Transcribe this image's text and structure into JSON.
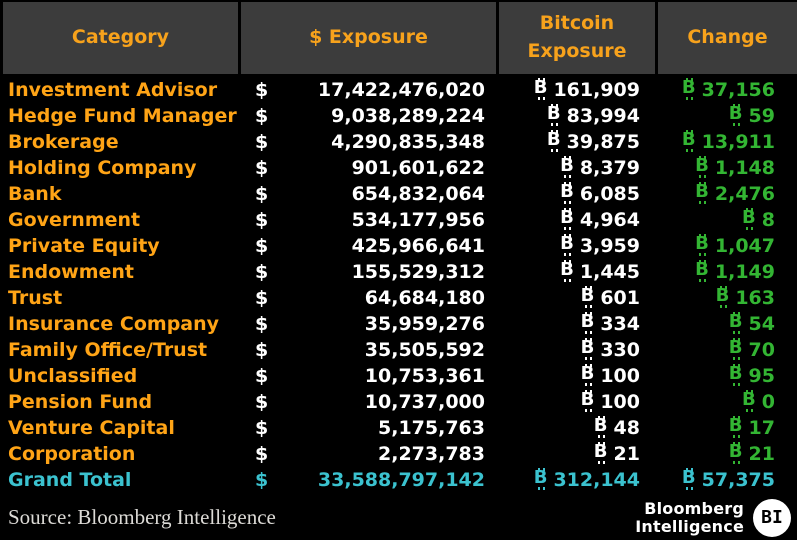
{
  "colors": {
    "background": "#000000",
    "header_bg": "#3c3c3c",
    "header_text": "#f7a21c",
    "category_orange": "#ffa416",
    "value_white": "#ffffff",
    "change_green": "#33b533",
    "total_cyan": "#3bc2cf"
  },
  "table": {
    "headers": [
      "Category",
      "$ Exposure",
      "Bitcoin Exposure",
      "Change"
    ],
    "currency_usd": "$",
    "currency_btc": "₿",
    "rows": [
      {
        "category": "Investment Advisor",
        "usd": "17,422,476,020",
        "btc": "161,909",
        "change": "37,156"
      },
      {
        "category": "Hedge Fund Manager",
        "usd": "9,038,289,224",
        "btc": "83,994",
        "change": "59"
      },
      {
        "category": "Brokerage",
        "usd": "4,290,835,348",
        "btc": "39,875",
        "change": "13,911"
      },
      {
        "category": "Holding Company",
        "usd": "901,601,622",
        "btc": "8,379",
        "change": "1,148"
      },
      {
        "category": "Bank",
        "usd": "654,832,064",
        "btc": "6,085",
        "change": "2,476"
      },
      {
        "category": "Government",
        "usd": "534,177,956",
        "btc": "4,964",
        "change": "8"
      },
      {
        "category": "Private Equity",
        "usd": "425,966,641",
        "btc": "3,959",
        "change": "1,047"
      },
      {
        "category": "Endowment",
        "usd": "155,529,312",
        "btc": "1,445",
        "change": "1,149"
      },
      {
        "category": "Trust",
        "usd": "64,684,180",
        "btc": "601",
        "change": "163"
      },
      {
        "category": "Insurance Company",
        "usd": "35,959,276",
        "btc": "334",
        "change": "54"
      },
      {
        "category": "Family Office/Trust",
        "usd": "35,505,592",
        "btc": "330",
        "change": "70"
      },
      {
        "category": "Unclassified",
        "usd": "10,753,361",
        "btc": "100",
        "change": "95"
      },
      {
        "category": "Pension Fund",
        "usd": "10,737,000",
        "btc": "100",
        "change": "0"
      },
      {
        "category": "Venture Capital",
        "usd": "5,175,763",
        "btc": "48",
        "change": "17"
      },
      {
        "category": "Corporation",
        "usd": "2,273,783",
        "btc": "21",
        "change": "21"
      },
      {
        "category": "Grand Total",
        "usd": "33,588,797,142",
        "btc": "312,144",
        "change": "57,375",
        "total": true
      }
    ]
  },
  "chart_data": {
    "type": "table",
    "columns": [
      "Category",
      "$ Exposure",
      "Bitcoin Exposure",
      "Change"
    ],
    "rows": [
      [
        "Investment Advisor",
        17422476020,
        161909,
        37156
      ],
      [
        "Hedge Fund Manager",
        9038289224,
        83994,
        59
      ],
      [
        "Brokerage",
        4290835348,
        39875,
        13911
      ],
      [
        "Holding Company",
        901601622,
        8379,
        1148
      ],
      [
        "Bank",
        654832064,
        6085,
        2476
      ],
      [
        "Government",
        534177956,
        4964,
        8
      ],
      [
        "Private Equity",
        425966641,
        3959,
        1047
      ],
      [
        "Endowment",
        155529312,
        1445,
        1149
      ],
      [
        "Trust",
        64684180,
        601,
        163
      ],
      [
        "Insurance Company",
        35959276,
        334,
        54
      ],
      [
        "Family Office/Trust",
        35505592,
        330,
        70
      ],
      [
        "Unclassified",
        10753361,
        100,
        95
      ],
      [
        "Pension Fund",
        10737000,
        100,
        0
      ],
      [
        "Venture Capital",
        5175763,
        48,
        17
      ],
      [
        "Corporation",
        2273783,
        21,
        21
      ]
    ],
    "grand_total": [
      "Grand Total",
      33588797142,
      312144,
      57375
    ],
    "units": {
      "usd": "$",
      "btc": "₿"
    },
    "source": "Source: Bloomberg Intelligence"
  },
  "footer": {
    "source": "Source: Bloomberg Intelligence",
    "logo_line1": "Bloomberg",
    "logo_line2": "Intelligence",
    "logo_badge": "BI"
  }
}
